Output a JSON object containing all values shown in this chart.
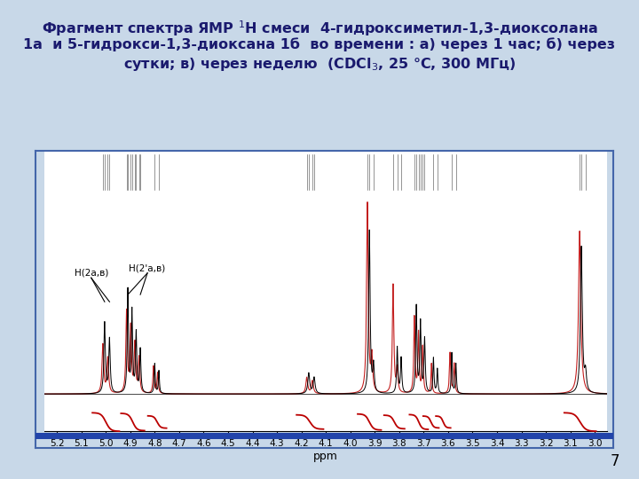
{
  "title_line1": "Фрагмент спектра ЯМР $^{1}$Н смеси  4-гидроксиметил-1,3-диоксолана",
  "title_line2": "1а  и 5-гидрокси-1,3-диоксана 1б  во времени : а) через 1 час; б) через",
  "title_line3": "сутки; в) через неделю  (CDCl$_{3}$, 25 °C, 300 МГц)",
  "slide_bg": "#c8d8e8",
  "plot_bg": "#ffffff",
  "border_color": "#4466aa",
  "xmin": 2.95,
  "xmax": 5.25,
  "xlabel": "ppm",
  "page_number": "7",
  "label1": "H(2а,в)",
  "label2": "H(2'а,в)"
}
